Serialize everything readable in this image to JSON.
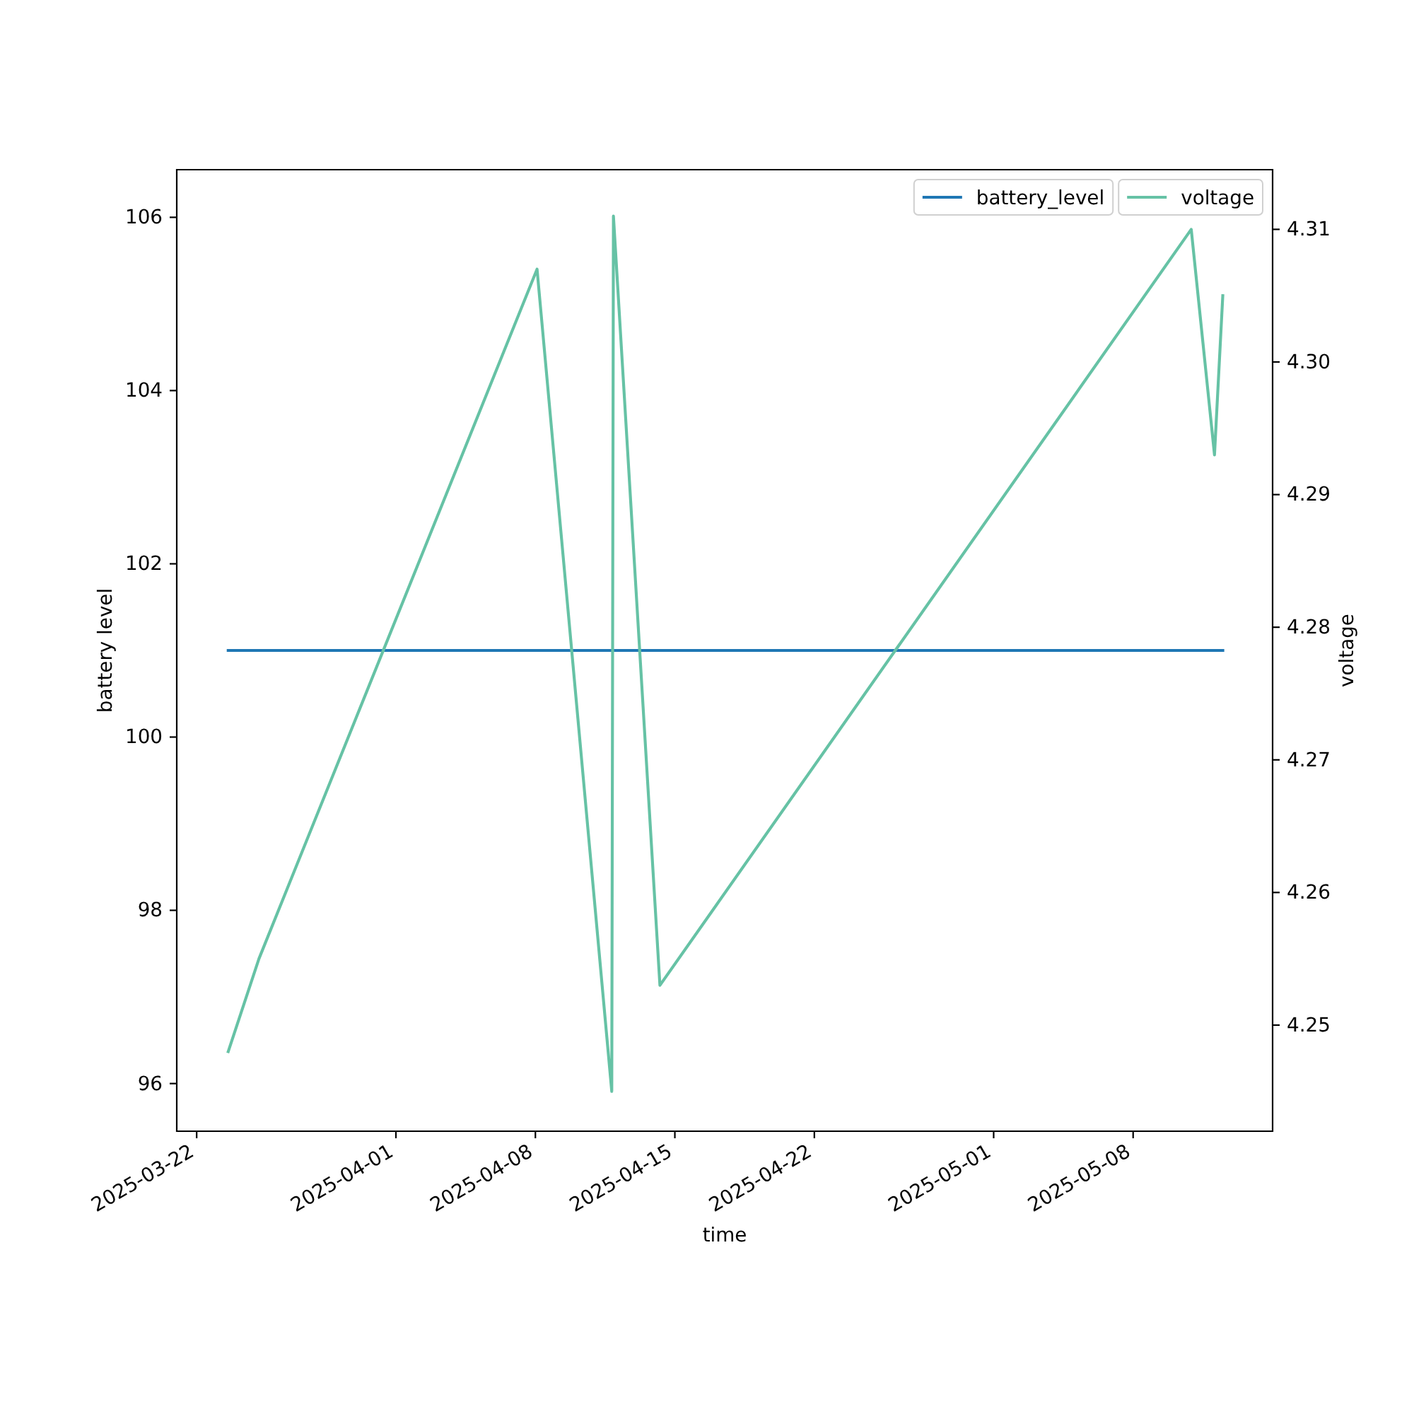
{
  "chart_data": {
    "type": "line",
    "xlabel": "time",
    "ylabel": "battery level",
    "y2label": "voltage",
    "x": [
      "2025-03-23T14:00",
      "2025-03-25T03:00",
      "2025-04-08T02:00",
      "2025-04-11T20:00",
      "2025-04-11T22:00",
      "2025-04-14T06:00",
      "2025-05-10T22:00",
      "2025-05-12T02:00",
      "2025-05-12T12:00"
    ],
    "xlim": [
      "2025-03-21",
      "2025-05-15"
    ],
    "xticks": [
      "2025-03-22",
      "2025-04-01",
      "2025-04-08",
      "2025-04-15",
      "2025-04-22",
      "2025-05-01",
      "2025-05-08"
    ],
    "ylim": [
      95.45,
      106.55
    ],
    "yticks": [
      96,
      98,
      100,
      102,
      104,
      106
    ],
    "y2lim": [
      4.242,
      4.3145
    ],
    "y2ticks": [
      4.25,
      4.26,
      4.27,
      4.28,
      4.29,
      {
        "value": 4.3,
        "label": "4.30"
      },
      4.31
    ],
    "series": [
      {
        "name": "battery_level",
        "color": "#1f77b4",
        "values": [
          101,
          101,
          101,
          101,
          101,
          101,
          101,
          101,
          101
        ]
      },
      {
        "name": "voltage",
        "color": "#66c2a5",
        "axis": "y2",
        "values": [
          4.248,
          4.255,
          4.307,
          4.245,
          4.311,
          4.253,
          4.31,
          4.293,
          4.305
        ]
      }
    ],
    "legend": "top right",
    "line_style": "solid"
  }
}
